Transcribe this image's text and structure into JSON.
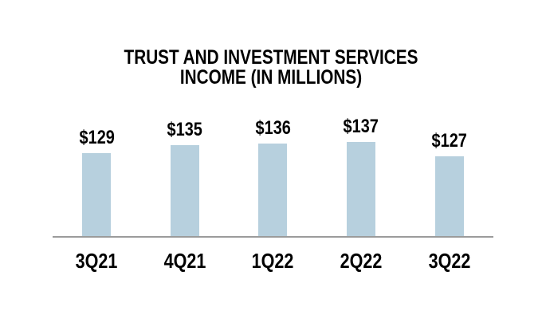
{
  "chart_data": {
    "type": "bar",
    "title": "TRUST AND INVESTMENT SERVICES INCOME (IN MILLIONS)",
    "title_line1": "TRUST AND INVESTMENT SERVICES",
    "title_line2": "INCOME (IN MILLIONS)",
    "categories": [
      "3Q21",
      "4Q21",
      "1Q22",
      "2Q22",
      "3Q22"
    ],
    "values": [
      129,
      135,
      136,
      137,
      127
    ],
    "value_labels": [
      "$129",
      "$135",
      "$136",
      "$137",
      "$127"
    ],
    "xlabel": "",
    "ylabel": "",
    "ylim": [
      70,
      140
    ],
    "grid": false,
    "legend": "none",
    "colors": {
      "bar": "#B7D0DE",
      "axis_line": "#9B9B9B",
      "text": "#000000",
      "background": "#FFFFFF"
    }
  }
}
